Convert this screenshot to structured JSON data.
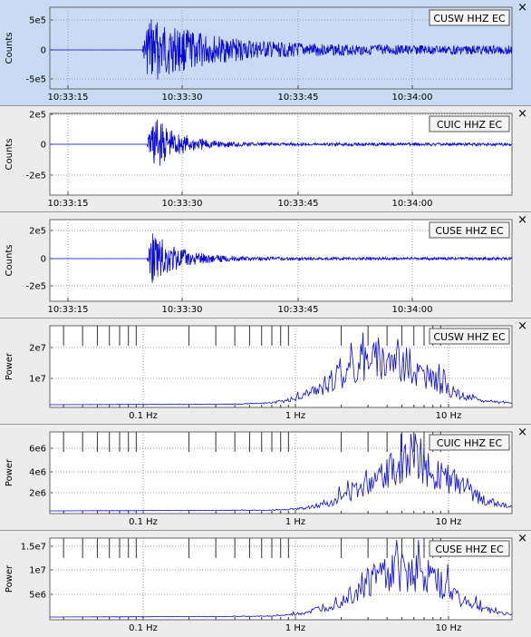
{
  "panels": [
    {
      "id": "cusw-wave",
      "kind": "waveform",
      "selected": true,
      "station": "CUSW HHZ EC",
      "ylabel": "Counts",
      "yticks": [
        "5e5",
        "0",
        "-5e5"
      ],
      "xticks": [
        "10:33:15",
        "10:33:30",
        "10:33:45",
        "10:34:00"
      ],
      "onset": 0.2,
      "amp": 0.95
    },
    {
      "id": "cuic-wave",
      "kind": "waveform",
      "selected": false,
      "station": "CUIC HHZ EC",
      "ylabel": "Counts",
      "yticks": [
        "2e5",
        "0",
        "-2e5"
      ],
      "xticks": [
        "10:33:15",
        "10:33:30",
        "10:33:45",
        "10:34:00"
      ],
      "onset": 0.21,
      "amp": 0.95
    },
    {
      "id": "cuse-wave",
      "kind": "waveform",
      "selected": false,
      "station": "CUSE HHZ EC",
      "ylabel": "Counts",
      "yticks": [
        "2e5",
        "0",
        "-2e5"
      ],
      "xticks": [
        "10:33:15",
        "10:33:30",
        "10:33:45",
        "10:34:00"
      ],
      "onset": 0.21,
      "amp": 0.9
    },
    {
      "id": "cusw-spec",
      "kind": "spectrum",
      "selected": false,
      "station": "CUSW HHZ EC",
      "ylabel": "Power",
      "yticks": [
        "2e7",
        "1e7"
      ],
      "xticks": [
        "0.1 Hz",
        "1 Hz",
        "10 Hz"
      ]
    },
    {
      "id": "cuic-spec",
      "kind": "spectrum",
      "selected": false,
      "station": "CUIC HHZ EC",
      "ylabel": "Power",
      "yticks": [
        "6e6",
        "4e6",
        "2e6"
      ],
      "xticks": [
        "0.1 Hz",
        "1 Hz",
        "10 Hz"
      ]
    },
    {
      "id": "cuse-spec",
      "kind": "spectrum",
      "selected": false,
      "station": "CUSE HHZ EC",
      "ylabel": "Power",
      "yticks": [
        "1.5e7",
        "1e7",
        "5e6"
      ],
      "xticks": [
        "0.1 Hz",
        "1 Hz",
        "10 Hz"
      ]
    }
  ],
  "close_glyph": "×",
  "colors": {
    "trace": "#0a0ad0",
    "selected_bg": "#c9dbf2",
    "plot_bg": "#ffffff",
    "panel_bg": "#ececec"
  }
}
